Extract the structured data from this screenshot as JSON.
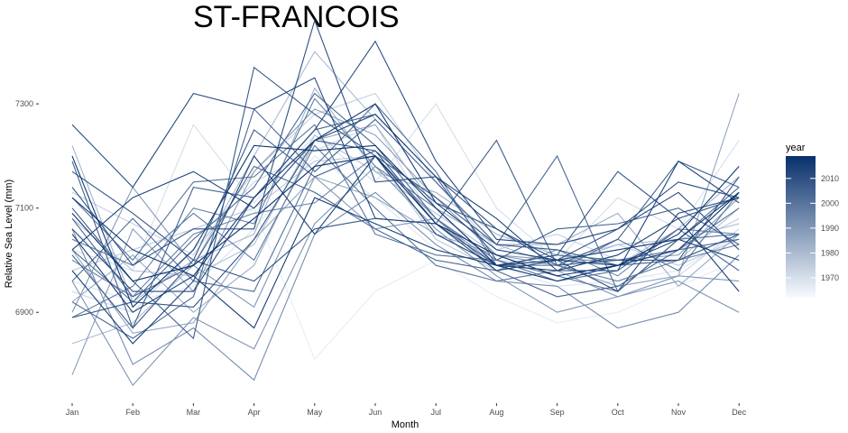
{
  "chart_data": {
    "type": "line",
    "title": "ST-FRANCOIS",
    "xlabel": "Month",
    "ylabel": "Relative Sea Level (mm)",
    "categories": [
      "Jan",
      "Feb",
      "Mar",
      "Apr",
      "May",
      "Jun",
      "Jul",
      "Aug",
      "Sep",
      "Oct",
      "Nov",
      "Dec"
    ],
    "y_ticks": [
      6900,
      7100,
      7300
    ],
    "ylim": [
      6755,
      7430
    ],
    "grid": false,
    "legend": {
      "title": "year",
      "position": "right",
      "ticks": [
        1970,
        1980,
        1990,
        2000,
        2010
      ],
      "range": [
        1962,
        2019
      ]
    },
    "color_scale": {
      "low": "#f7fbff",
      "high": "#08306b"
    },
    "series": [
      {
        "year": 1963,
        "values": [
          7000,
          7050,
          6980,
          7010,
          7130,
          7110,
          7080,
          6990,
          6960,
          6980,
          6960,
          7010
        ]
      },
      {
        "year": 1966,
        "values": [
          7060,
          6960,
          6990,
          7100,
          6810,
          6940,
          7000,
          6930,
          6880,
          6900,
          6950,
          7000
        ]
      },
      {
        "year": 1968,
        "values": [
          6960,
          6920,
          6950,
          7060,
          7200,
          7120,
          7020,
          6990,
          6950,
          6960,
          6980,
          7050
        ]
      },
      {
        "year": 1970,
        "values": [
          7020,
          6980,
          7260,
          7110,
          7240,
          7150,
          7300,
          7100,
          7000,
          7120,
          7060,
          7230
        ]
      },
      {
        "year": 1972,
        "values": [
          6940,
          6900,
          7020,
          7150,
          7210,
          7260,
          7070,
          7000,
          6990,
          6950,
          6970,
          7060
        ]
      },
      {
        "year": 1974,
        "values": [
          7130,
          7070,
          7010,
          7170,
          7280,
          7320,
          7150,
          7020,
          7050,
          7000,
          7020,
          7080
        ]
      },
      {
        "year": 1976,
        "values": [
          6980,
          7020,
          7060,
          7100,
          7190,
          7200,
          7040,
          6980,
          7000,
          7030,
          6990,
          7040
        ]
      },
      {
        "year": 1978,
        "values": [
          7080,
          6980,
          6970,
          7030,
          7240,
          7170,
          7090,
          7010,
          6990,
          6960,
          7000,
          7100
        ]
      },
      {
        "year": 1980,
        "values": [
          6840,
          6880,
          6990,
          7200,
          7400,
          7270,
          7150,
          7030,
          6990,
          7030,
          7040,
          7070
        ]
      },
      {
        "year": 1982,
        "values": [
          7220,
          6920,
          7000,
          7050,
          7330,
          7170,
          7130,
          7050,
          7010,
          6990,
          7060,
          7160
        ]
      },
      {
        "year": 1984,
        "values": [
          6920,
          7010,
          6900,
          6990,
          7230,
          7260,
          7100,
          7030,
          7030,
          7090,
          6950,
          7050
        ]
      },
      {
        "year": 1986,
        "values": [
          7020,
          6860,
          6880,
          7040,
          7160,
          7120,
          7050,
          7010,
          6990,
          6950,
          6970,
          7320
        ]
      },
      {
        "year": 1988,
        "values": [
          6780,
          7060,
          6940,
          7170,
          7290,
          7240,
          7120,
          7010,
          7000,
          7000,
          7010,
          7120
        ]
      },
      {
        "year": 1990,
        "values": [
          6900,
          7140,
          6990,
          6910,
          7160,
          7060,
          7080,
          6990,
          6980,
          6930,
          6970,
          6960
        ]
      },
      {
        "year": 1991,
        "values": [
          6960,
          6760,
          6890,
          6830,
          7070,
          7180,
          7060,
          6970,
          6900,
          6930,
          6960,
          6900
        ]
      },
      {
        "year": 1993,
        "values": [
          7060,
          6800,
          6870,
          6770,
          7050,
          7130,
          7030,
          6960,
          6950,
          6870,
          6900,
          7010
        ]
      },
      {
        "year": 1995,
        "values": [
          7000,
          6930,
          7050,
          7090,
          7110,
          7200,
          7080,
          6980,
          7020,
          6970,
          7060,
          7050
        ]
      },
      {
        "year": 1997,
        "values": [
          6890,
          6950,
          7100,
          7070,
          7310,
          7180,
          7100,
          6990,
          6990,
          6960,
          7000,
          7030
        ]
      },
      {
        "year": 1999,
        "values": [
          7040,
          6990,
          7090,
          7000,
          7220,
          7100,
          6990,
          6960,
          6980,
          7040,
          6980,
          7130
        ]
      },
      {
        "year": 2000,
        "values": [
          7120,
          7000,
          7150,
          7160,
          7260,
          7050,
          7010,
          7000,
          6970,
          6940,
          7040,
          7050
        ]
      },
      {
        "year": 2001,
        "values": [
          6960,
          7080,
          6960,
          6940,
          7180,
          7300,
          7170,
          6990,
          7010,
          7000,
          7020,
          7100
        ]
      },
      {
        "year": 2002,
        "values": [
          7020,
          6920,
          7040,
          7140,
          7320,
          7220,
          7080,
          7000,
          6960,
          6980,
          7060,
          6980
        ]
      },
      {
        "year": 2003,
        "values": [
          6920,
          6850,
          6930,
          7290,
          7170,
          7270,
          7150,
          7030,
          7200,
          6940,
          7040,
          7140
        ]
      },
      {
        "year": 2004,
        "values": [
          7080,
          6930,
          6990,
          7180,
          7130,
          7060,
          7000,
          6980,
          6930,
          6950,
          7020,
          7040
        ]
      },
      {
        "year": 2005,
        "values": [
          7190,
          6870,
          7140,
          7120,
          7250,
          7280,
          7160,
          7000,
          7060,
          7070,
          7100,
          7030
        ]
      },
      {
        "year": 2006,
        "values": [
          7010,
          6870,
          7000,
          7250,
          7160,
          7210,
          7070,
          7230,
          6990,
          7040,
          7190,
          7140
        ]
      },
      {
        "year": 2007,
        "values": [
          7100,
          6960,
          6850,
          7370,
          7280,
          7200,
          7120,
          7030,
          7020,
          6990,
          7000,
          7160
        ]
      },
      {
        "year": 2008,
        "values": [
          7170,
          7090,
          7000,
          6960,
          7060,
          7080,
          7070,
          6990,
          7010,
          7170,
          7080,
          7120
        ]
      },
      {
        "year": 2009,
        "values": [
          6890,
          6920,
          6910,
          7040,
          7230,
          7210,
          7110,
          7060,
          6990,
          7000,
          7000,
          7050
        ]
      },
      {
        "year": 2010,
        "values": [
          7140,
          6990,
          7060,
          7060,
          7460,
          7150,
          7160,
          7060,
          7000,
          7060,
          7150,
          7120
        ]
      },
      {
        "year": 2011,
        "values": [
          7060,
          6940,
          6940,
          7120,
          7250,
          7420,
          7190,
          7040,
          7030,
          7060,
          7130,
          7020
        ]
      },
      {
        "year": 2012,
        "values": [
          7260,
          7140,
          7320,
          7290,
          7350,
          7080,
          7070,
          6980,
          7000,
          6940,
          7090,
          7120
        ]
      },
      {
        "year": 2013,
        "values": [
          7020,
          7120,
          7170,
          7100,
          7230,
          7280,
          7160,
          7080,
          6980,
          6980,
          7190,
          7110
        ]
      },
      {
        "year": 2014,
        "values": [
          6980,
          6840,
          6960,
          7200,
          7050,
          7200,
          7050,
          6990,
          6980,
          7010,
          7080,
          6940
        ]
      },
      {
        "year": 2015,
        "values": [
          7050,
          6900,
          6970,
          6870,
          7120,
          7070,
          7020,
          6990,
          7000,
          6990,
          7040,
          7000
        ]
      },
      {
        "year": 2016,
        "values": [
          7120,
          7020,
          6970,
          7120,
          7230,
          7300,
          7110,
          7020,
          7000,
          7020,
          7040,
          7130
        ]
      },
      {
        "year": 2017,
        "values": [
          7200,
          6910,
          7020,
          7220,
          7210,
          7220,
          7100,
          6990,
          6960,
          6990,
          7050,
          7180
        ]
      },
      {
        "year": 2018,
        "values": [
          7090,
          6960,
          6990,
          7080,
          7180,
          7200,
          7070,
          7010,
          6970,
          6990,
          7020,
          7130
        ]
      }
    ]
  }
}
